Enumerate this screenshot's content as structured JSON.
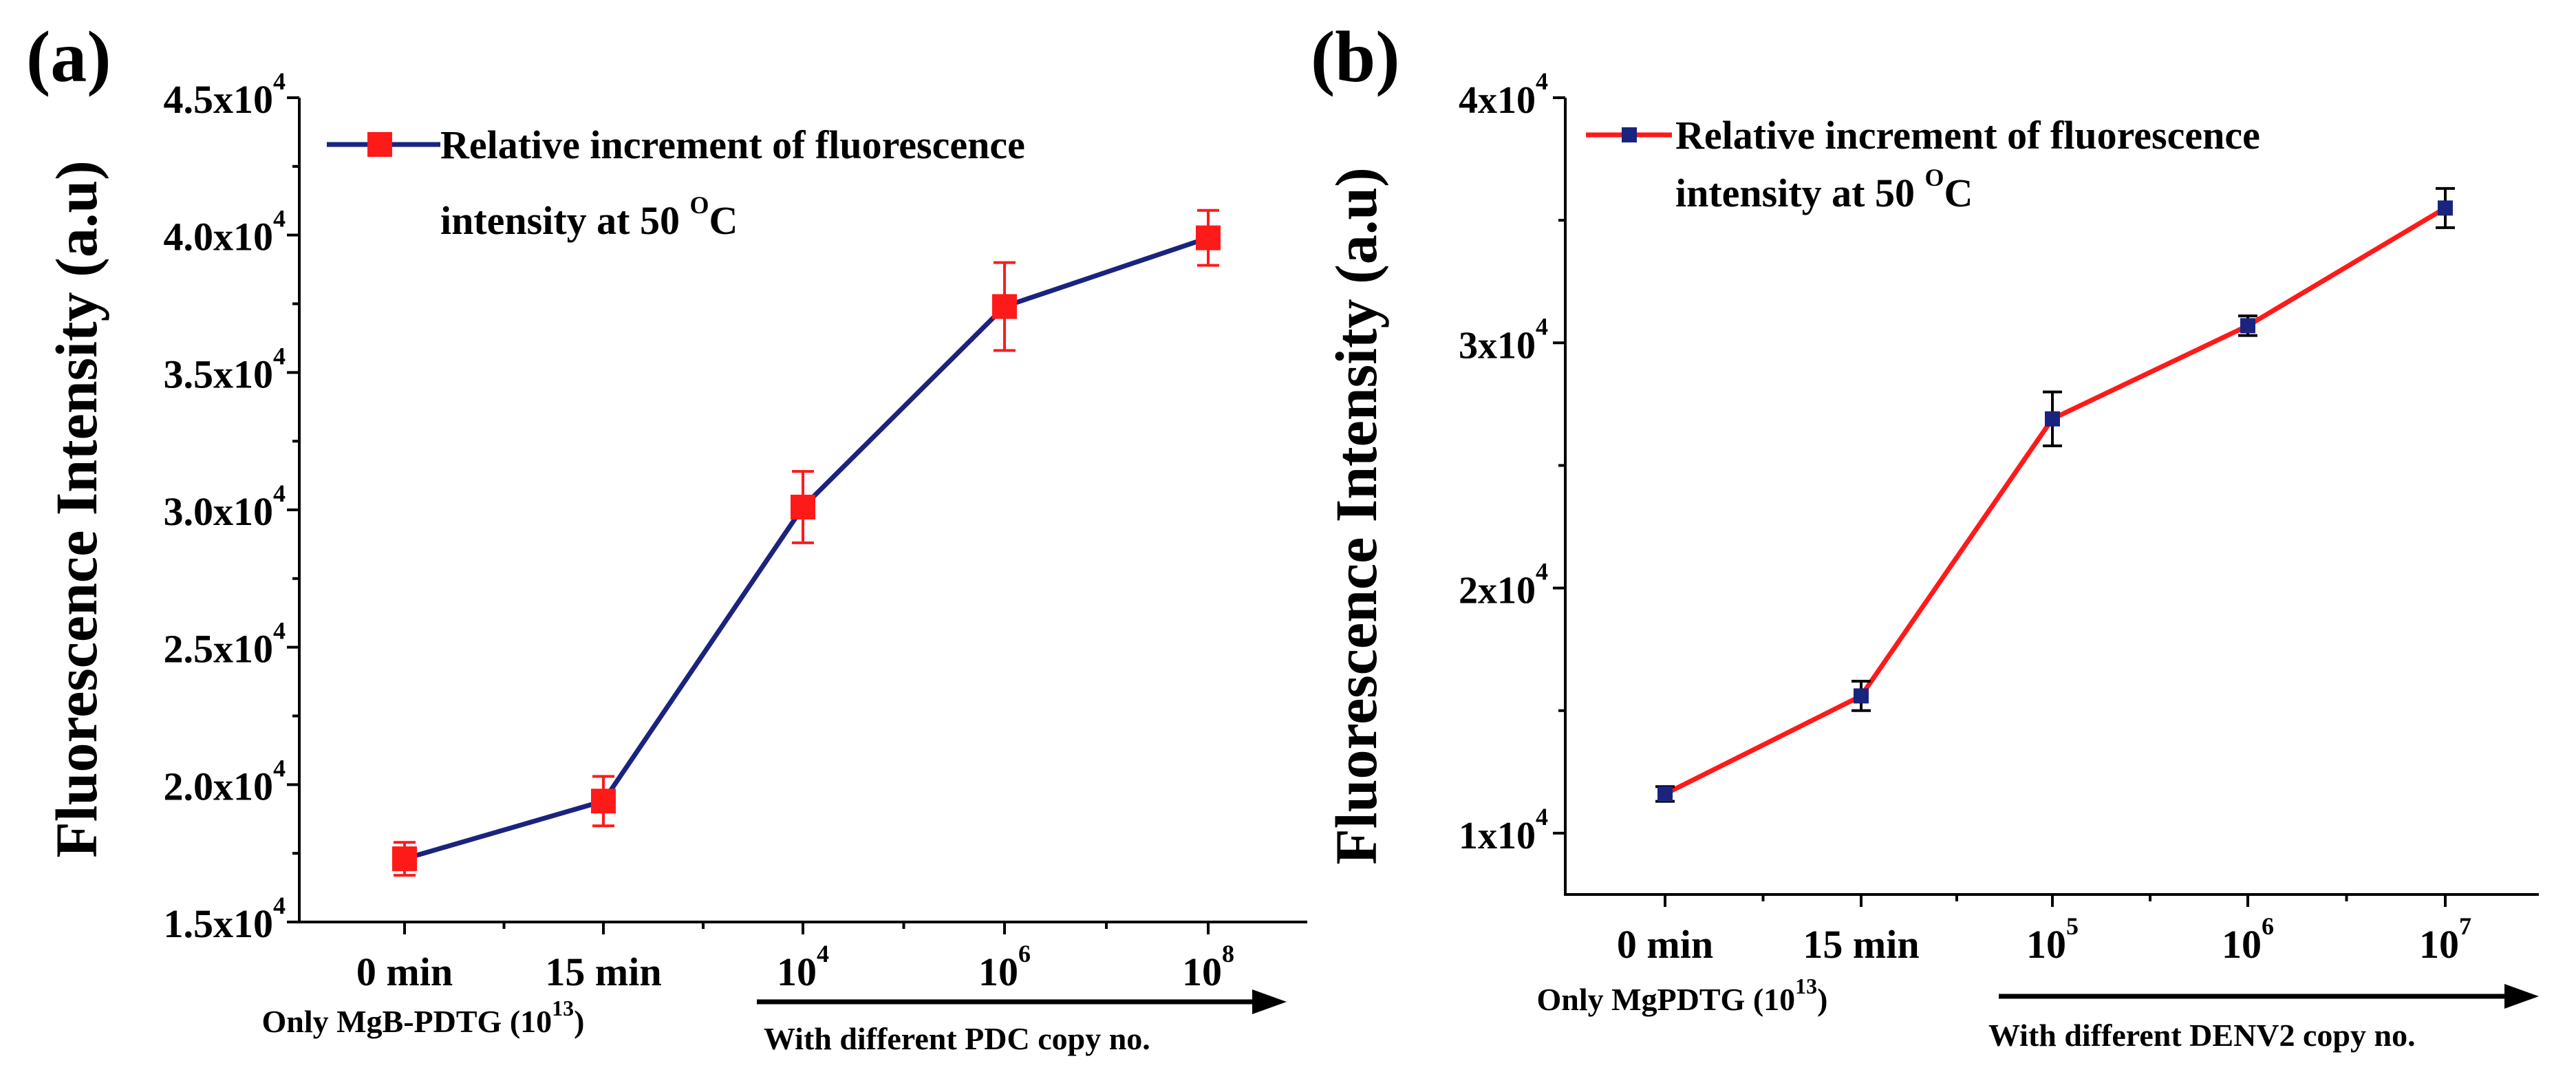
{
  "chart_data": [
    {
      "panel": "(a)",
      "type": "line",
      "xlabel": "",
      "ylabel": "Fluorescence Intensity (a.u)",
      "ylim": [
        15000,
        45000
      ],
      "yticks": [
        {
          "mant": "1.5x10",
          "exp": "4",
          "value": 15000
        },
        {
          "mant": "2.0x10",
          "exp": "4",
          "value": 20000
        },
        {
          "mant": "2.5x10",
          "exp": "4",
          "value": 25000
        },
        {
          "mant": "3.0x10",
          "exp": "4",
          "value": 30000
        },
        {
          "mant": "3.5x10",
          "exp": "4",
          "value": 35000
        },
        {
          "mant": "4.0x10",
          "exp": "4",
          "value": 40000
        },
        {
          "mant": "4.5x10",
          "exp": "4",
          "value": 45000
        }
      ],
      "categories": [
        {
          "base": "0 min",
          "exp": ""
        },
        {
          "base": "15 min",
          "exp": ""
        },
        {
          "base": "10",
          "exp": "4"
        },
        {
          "base": "10",
          "exp": "6"
        },
        {
          "base": "10",
          "exp": "8"
        }
      ],
      "series": [
        {
          "name": "Relative increment of fluorescence intensity at 50 °C",
          "values": [
            17300,
            19400,
            30100,
            37400,
            39900
          ],
          "errors": [
            600,
            900,
            1300,
            1600,
            1000
          ]
        }
      ],
      "legend": {
        "line1": "Relative increment of fluorescence",
        "line2": "intensity at 50",
        "deg": "O",
        "unit": "C",
        "position": "top-left"
      },
      "line_color": "#1a237e",
      "marker_color": "#ff1a1a",
      "errorbar_color": "#ff1a1a",
      "marker_shape": "square",
      "sub_label": {
        "text": "Only MgB-PDTG (10",
        "exp": "13",
        "close": ")"
      },
      "arrow_label": "With different PDC copy no."
    },
    {
      "panel": "(b)",
      "type": "line",
      "xlabel": "",
      "ylabel": "Fluorescence Intensity (a.u)",
      "ylim": [
        7500,
        40000
      ],
      "yticks": [
        {
          "mant": "1x10",
          "exp": "4",
          "value": 10000
        },
        {
          "mant": "2x10",
          "exp": "4",
          "value": 20000
        },
        {
          "mant": "3x10",
          "exp": "4",
          "value": 30000
        },
        {
          "mant": "4x10",
          "exp": "4",
          "value": 40000
        }
      ],
      "categories": [
        {
          "base": "0 min",
          "exp": ""
        },
        {
          "base": "15 min",
          "exp": ""
        },
        {
          "base": "10",
          "exp": "5"
        },
        {
          "base": "10",
          "exp": "6"
        },
        {
          "base": "10",
          "exp": "7"
        }
      ],
      "series": [
        {
          "name": "Relative increment of fluorescence intensity at 50 °C",
          "values": [
            11600,
            15600,
            26900,
            30700,
            35500
          ],
          "errors": [
            300,
            600,
            1100,
            400,
            800
          ]
        }
      ],
      "legend": {
        "line1": "Relative increment of fluorescence",
        "line2": "intensity at 50",
        "deg": "O",
        "unit": "C",
        "position": "top-left"
      },
      "line_color": "#ff1a1a",
      "marker_color": "#1a237e",
      "errorbar_color": "#000000",
      "marker_shape": "square",
      "sub_label": {
        "text": "Only MgPDTG (10",
        "exp": "13",
        "close": ")"
      },
      "arrow_label": "With different DENV2 copy no."
    }
  ]
}
